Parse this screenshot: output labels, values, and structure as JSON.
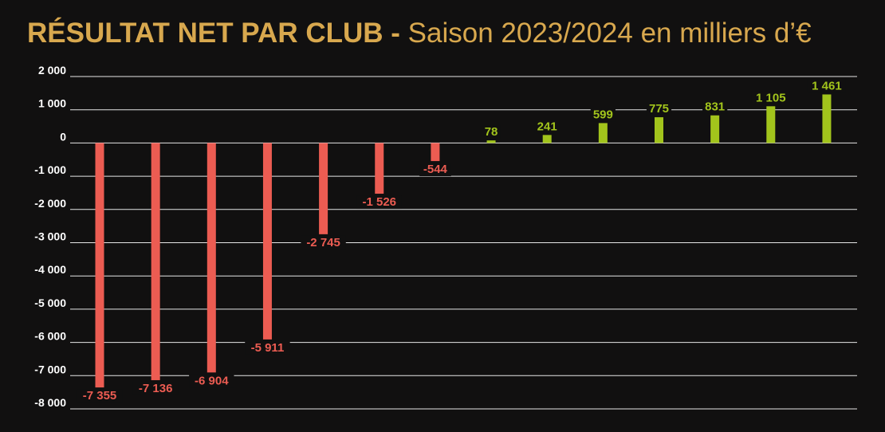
{
  "title": {
    "bold": "RÉSULTAT NET PAR CLUB",
    "separator": "-",
    "light": "Saison 2023/2024 en milliers d’€"
  },
  "colors": {
    "background": "#111010",
    "title": "#d8a84e",
    "negative": "#ec5c52",
    "positive": "#a2c41c",
    "grid": "#e6e6e6",
    "tick": "#ffffff",
    "label_bg": "#111010"
  },
  "chart_data": {
    "type": "bar",
    "title": "RÉSULTAT NET PAR CLUB - Saison 2023/2024 en milliers d’€",
    "xlabel": "",
    "ylabel": "",
    "ylim": [
      -8000,
      2000
    ],
    "yticks": [
      2000,
      1000,
      0,
      -1000,
      -2000,
      -3000,
      -4000,
      -5000,
      -6000,
      -7000,
      -8000
    ],
    "ytick_labels": [
      "2 000",
      "1 000",
      "0",
      "-1 000",
      "-2 000",
      "-3 000",
      "-4 000",
      "-5 000",
      "-6 000",
      "-7 000",
      "-8 000"
    ],
    "grid": true,
    "values": [
      -7355,
      -7136,
      -6904,
      -5911,
      -2745,
      -1526,
      -544,
      78,
      241,
      599,
      775,
      831,
      1105,
      1461
    ],
    "value_labels": [
      "-7 355",
      "-7 136",
      "-6 904",
      "-5 911",
      "-2 745",
      "-1 526",
      "-544",
      "78",
      "241",
      "599",
      "775",
      "831",
      "1 105",
      "1 461"
    ]
  }
}
